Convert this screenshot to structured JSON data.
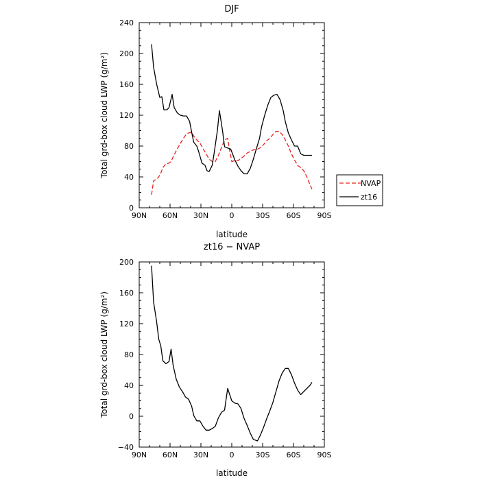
{
  "chart_data": [
    {
      "type": "line",
      "title": "DJF",
      "xlabel": "latitude",
      "ylabel": "Total grd-box cloud LWP (g/m²)",
      "xlim": [
        90,
        -90
      ],
      "ylim": [
        0,
        240
      ],
      "x_ticks": [
        90,
        60,
        30,
        0,
        -30,
        -60,
        -90
      ],
      "x_tick_labels": [
        "90N",
        "60N",
        "30N",
        "0",
        "30S",
        "60S",
        "90S"
      ],
      "y_ticks": [
        0,
        40,
        80,
        120,
        160,
        200,
        240
      ],
      "y_tick_labels": [
        "0",
        "40",
        "80",
        "120",
        "160",
        "200",
        "240"
      ],
      "grid": false,
      "legend": "right",
      "series": [
        {
          "name": "NVAP",
          "color": "#e8211f",
          "dash": "dashed",
          "x": [
            78,
            76,
            73,
            71,
            69,
            67,
            64,
            61,
            59,
            57,
            54,
            51,
            48,
            45,
            42,
            39,
            37,
            34,
            31,
            28,
            25,
            22,
            19,
            16,
            13,
            10,
            7,
            4,
            2,
            0,
            -3,
            -6,
            -9,
            -12,
            -15,
            -18,
            -21,
            -25,
            -28,
            -31,
            -34,
            -37,
            -40,
            -43,
            -46,
            -49,
            -52,
            -55,
            -58,
            -61,
            -64,
            -67,
            -70,
            -73,
            -76,
            -78
          ],
          "y": [
            17,
            35,
            37,
            40,
            45,
            52,
            57,
            58,
            60,
            66,
            74,
            81,
            88,
            94,
            97,
            98,
            93,
            88,
            84,
            77,
            70,
            63,
            60,
            60,
            68,
            78,
            88,
            90,
            74,
            60,
            61,
            61,
            64,
            67,
            71,
            73,
            75,
            76,
            78,
            82,
            87,
            90,
            95,
            99,
            99,
            95,
            88,
            80,
            70,
            62,
            55,
            52,
            48,
            40,
            30,
            24
          ]
        },
        {
          "name": "zt16",
          "color": "#000000",
          "dash": "solid",
          "x": [
            78,
            76,
            73,
            70,
            68,
            66,
            63,
            61,
            58,
            56,
            53,
            50,
            47,
            44,
            41,
            39,
            37,
            34,
            32,
            29,
            26,
            24,
            22,
            19,
            17,
            14,
            12,
            9,
            7,
            5,
            3,
            1,
            -1,
            -3,
            -6,
            -9,
            -12,
            -15,
            -18,
            -21,
            -24,
            -27,
            -29,
            -32,
            -35,
            -38,
            -41,
            -44,
            -47,
            -50,
            -52,
            -55,
            -58,
            -61,
            -64,
            -67,
            -70,
            -73,
            -76,
            -78
          ],
          "y": [
            212,
            182,
            160,
            143,
            144,
            127,
            127,
            130,
            147,
            130,
            123,
            120,
            119,
            119,
            112,
            98,
            85,
            80,
            72,
            58,
            55,
            48,
            47,
            55,
            72,
            100,
            126,
            100,
            79,
            78,
            77,
            76,
            69,
            62,
            54,
            48,
            44,
            44,
            51,
            63,
            77,
            90,
            105,
            120,
            133,
            143,
            146,
            147,
            140,
            126,
            112,
            97,
            88,
            80,
            80,
            70,
            68,
            68,
            68,
            68
          ]
        }
      ],
      "legend_entries": [
        "NVAP",
        "zt16"
      ]
    },
    {
      "type": "line",
      "title": "zt16 − NVAP",
      "xlabel": "latitude",
      "ylabel": "Total grd-box cloud LWP (g/m²)",
      "xlim": [
        90,
        -90
      ],
      "ylim": [
        -40,
        200
      ],
      "x_ticks": [
        90,
        60,
        30,
        0,
        -30,
        -60,
        -90
      ],
      "x_tick_labels": [
        "90N",
        "60N",
        "30N",
        "0",
        "30S",
        "60S",
        "90S"
      ],
      "y_ticks": [
        -40,
        0,
        40,
        80,
        120,
        160,
        200
      ],
      "y_tick_labels": [
        "−40",
        "0",
        "40",
        "80",
        "120",
        "160",
        "200"
      ],
      "grid": false,
      "series": [
        {
          "name": "zt16 − NVAP",
          "color": "#000000",
          "dash": "solid",
          "x": [
            78,
            76,
            73,
            71,
            69,
            67,
            64,
            61,
            59,
            57,
            54,
            51,
            48,
            45,
            42,
            39,
            37,
            34,
            31,
            28,
            25,
            22,
            19,
            16,
            13,
            10,
            7,
            4,
            2,
            0,
            -3,
            -6,
            -9,
            -12,
            -15,
            -18,
            -21,
            -25,
            -28,
            -31,
            -34,
            -37,
            -40,
            -43,
            -46,
            -49,
            -52,
            -55,
            -58,
            -61,
            -64,
            -67,
            -70,
            -73,
            -76,
            -78
          ],
          "y": [
            195,
            148,
            122,
            100,
            91,
            72,
            68,
            71,
            87,
            66,
            48,
            38,
            32,
            25,
            22,
            13,
            1,
            -6,
            -6,
            -13,
            -18,
            -18,
            -16,
            -13,
            -2,
            5,
            8,
            36,
            28,
            20,
            17,
            16,
            10,
            -3,
            -12,
            -22,
            -30,
            -32,
            -24,
            -14,
            -3,
            7,
            18,
            32,
            46,
            56,
            62,
            62,
            54,
            43,
            34,
            28,
            32,
            36,
            40,
            44
          ]
        }
      ]
    }
  ]
}
